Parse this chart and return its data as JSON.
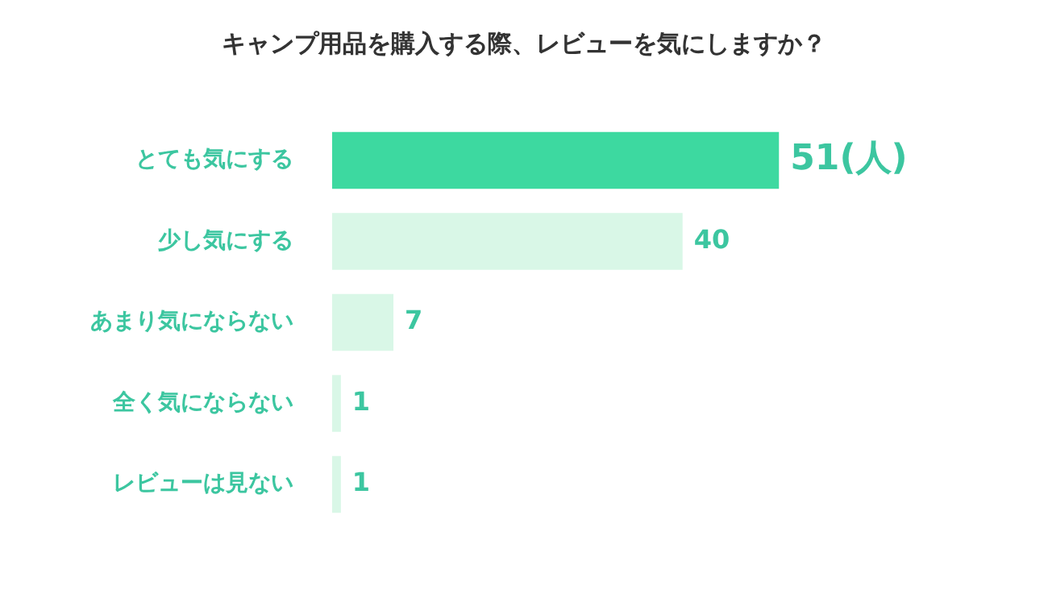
{
  "chart_data": {
    "type": "bar",
    "orientation": "horizontal",
    "title": "キャンプ用品を購入する際、レビューを気にしますか？",
    "categories": [
      "とても気にする",
      "少し気にする",
      "あまり気にならない",
      "全く気にならない",
      "レビューは見ない"
    ],
    "values": [
      51,
      40,
      7,
      1,
      1
    ],
    "colors": [
      "#3dd9a0",
      "#d9f7e7",
      "#d9f7e7",
      "#d9f7e7",
      "#d9f7e7"
    ],
    "value_labels": [
      "51(人)",
      "40",
      "7",
      "1",
      "1"
    ]
  }
}
